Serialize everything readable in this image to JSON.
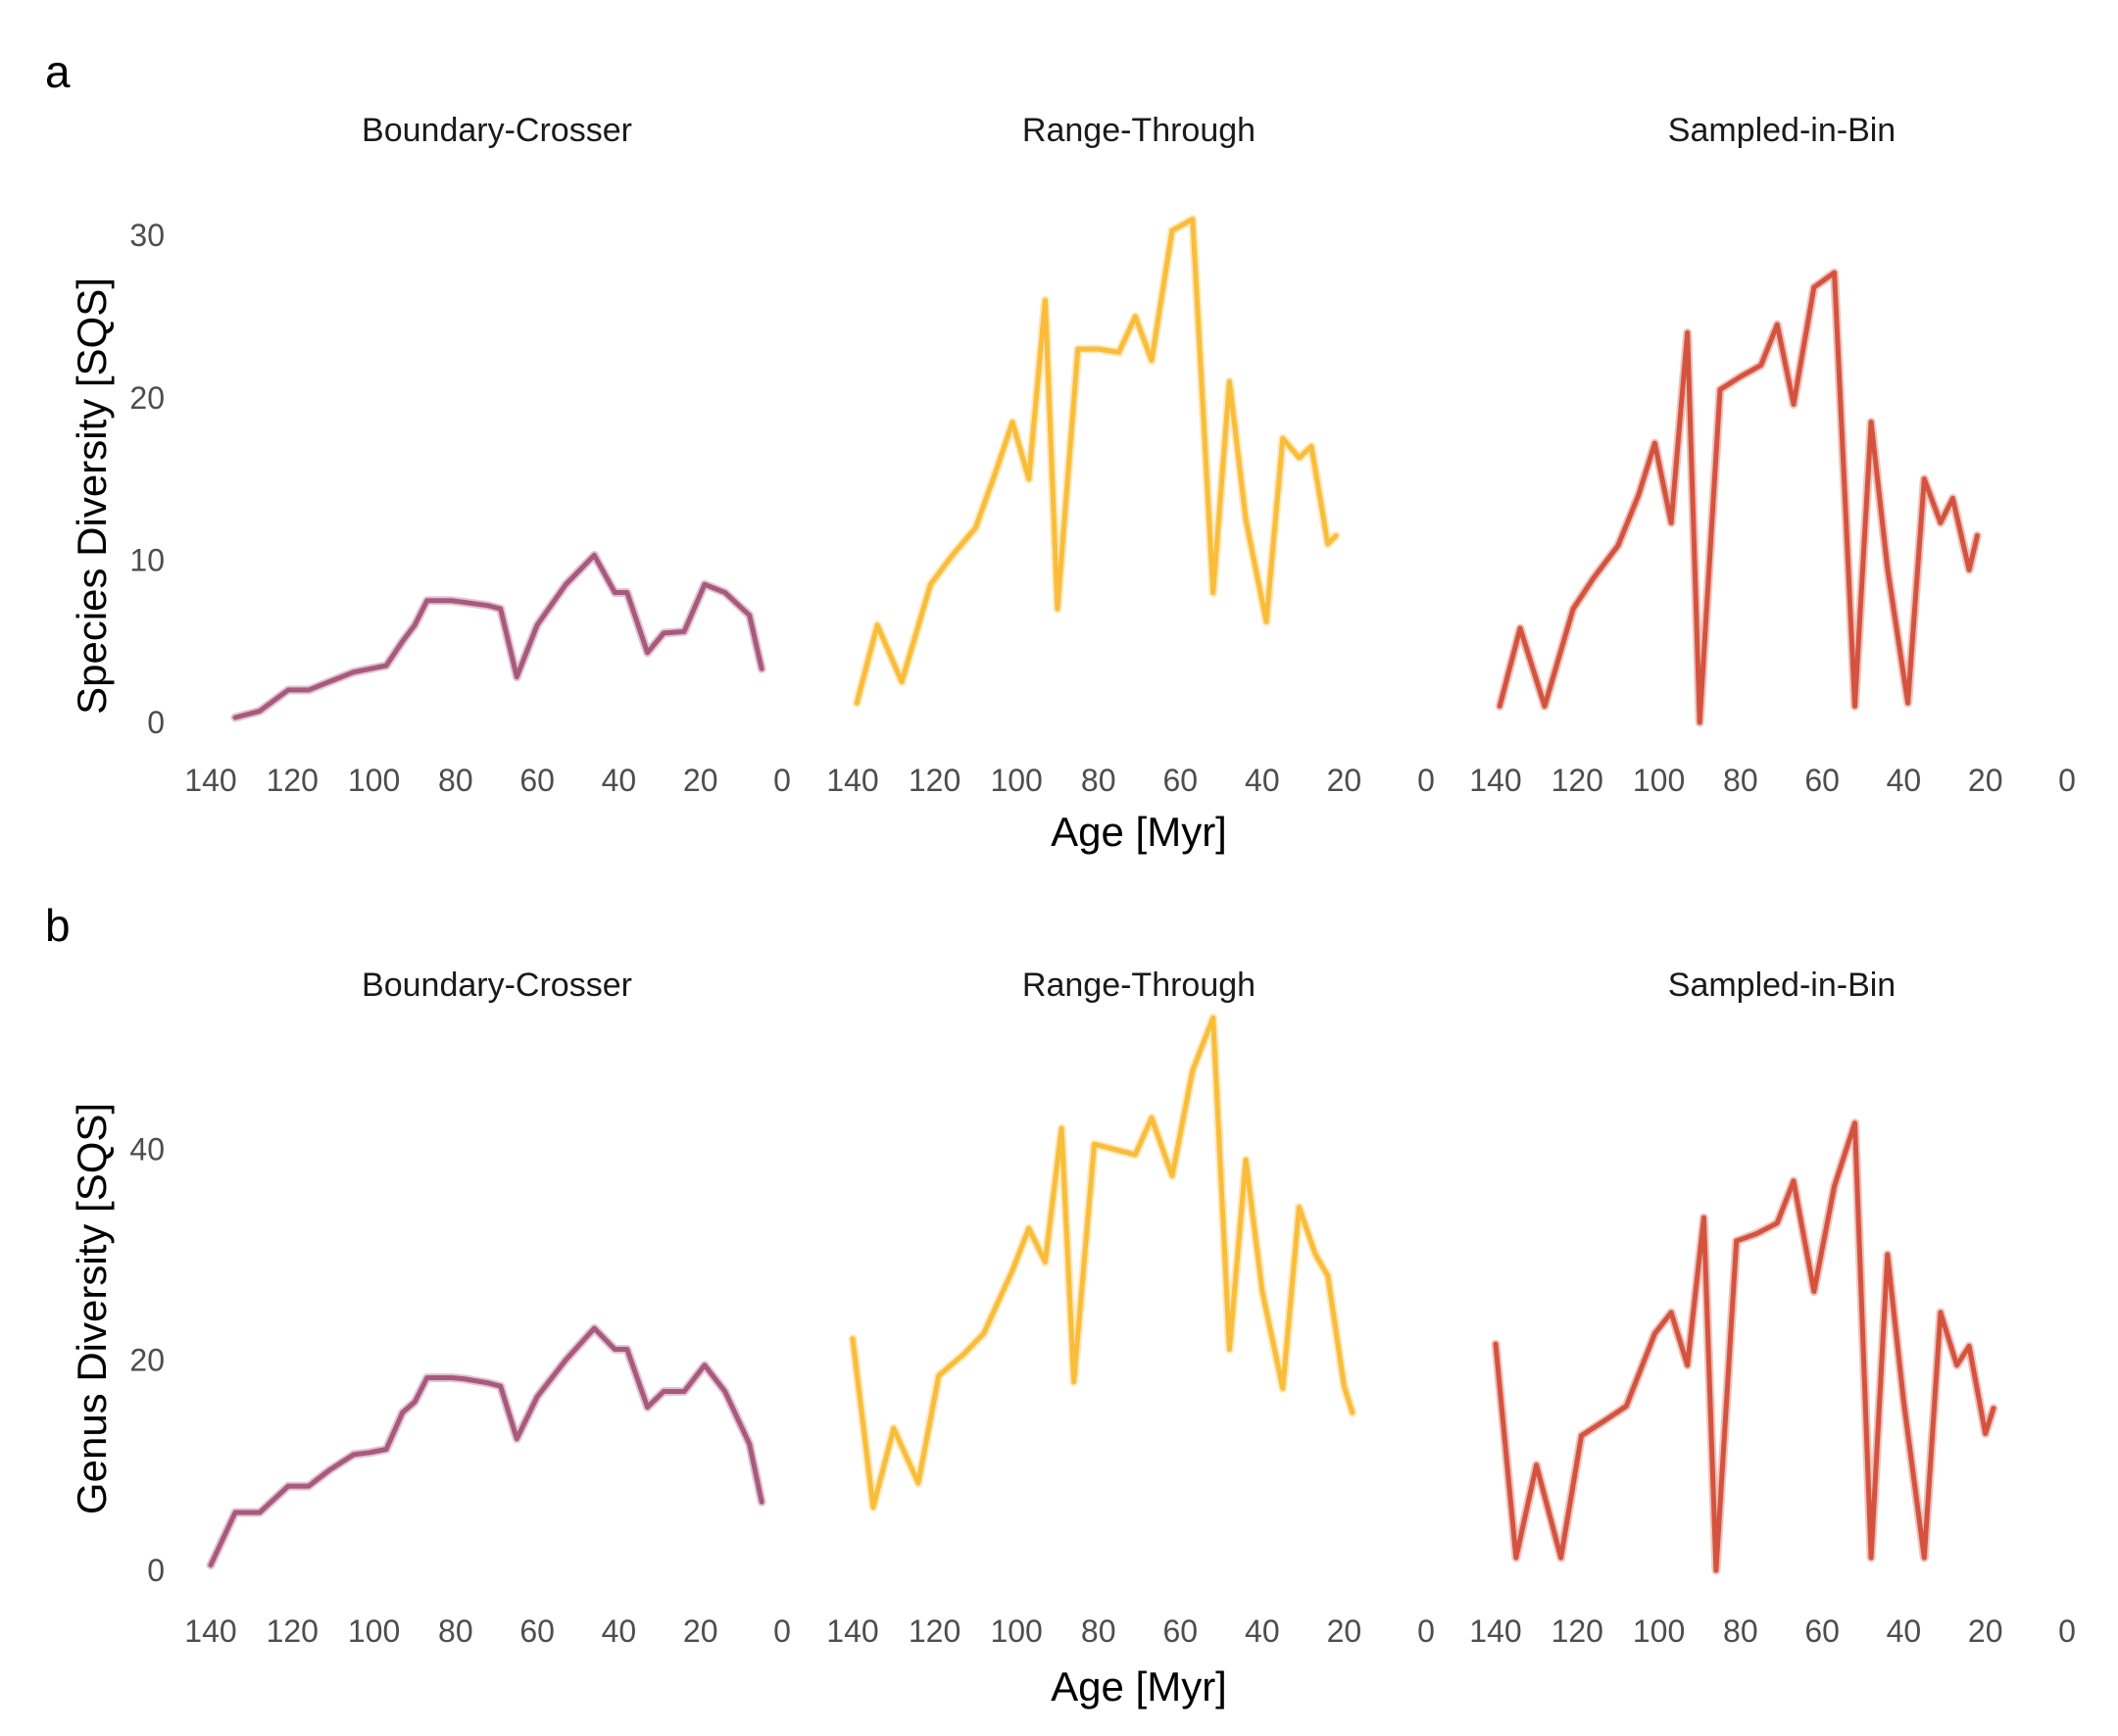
{
  "colors": {
    "Boundary-Crosser": "#a8597e",
    "Range-Through": "#f9bd3a",
    "Sampled-in-Bin": "#d4533f"
  },
  "x_ticks": [
    140,
    120,
    100,
    80,
    60,
    40,
    20,
    0
  ],
  "chart_data": [
    {
      "type": "line",
      "panel": "a",
      "ylabel": "Species Diversity  [SQS]",
      "xlabel": "Age [Myr]",
      "xlim": [
        140,
        0
      ],
      "ylim": [
        0,
        32
      ],
      "y_ticks": [
        0,
        10,
        20,
        30
      ],
      "x_ticks": [
        140,
        120,
        100,
        80,
        60,
        40,
        20,
        0
      ],
      "grid": false,
      "facets": [
        "Boundary-Crosser",
        "Range-Through",
        "Sampled-in-Bin"
      ],
      "series": [
        {
          "name": "Boundary-Crosser",
          "points": [
            [
              134,
              0.3
            ],
            [
              128,
              0.7
            ],
            [
              121,
              2
            ],
            [
              116,
              2
            ],
            [
              111,
              2.5
            ],
            [
              105,
              3.1
            ],
            [
              101,
              3.3
            ],
            [
              97,
              3.5
            ],
            [
              93,
              5
            ],
            [
              90,
              6
            ],
            [
              87,
              7.5
            ],
            [
              81,
              7.5
            ],
            [
              78,
              7.4
            ],
            [
              72,
              7.2
            ],
            [
              69,
              7
            ],
            [
              65,
              2.8
            ],
            [
              60,
              6
            ],
            [
              53,
              8.5
            ],
            [
              46,
              10.3
            ],
            [
              41,
              8
            ],
            [
              38,
              8
            ],
            [
              33,
              4.3
            ],
            [
              29,
              5.5
            ],
            [
              24,
              5.6
            ],
            [
              19,
              8.5
            ],
            [
              14,
              8
            ],
            [
              8,
              6.6
            ],
            [
              5,
              3.3
            ]
          ]
        },
        {
          "name": "Range-Through",
          "points": [
            [
              139,
              1.2
            ],
            [
              134,
              6
            ],
            [
              128,
              2.5
            ],
            [
              121,
              8.5
            ],
            [
              116,
              10.2
            ],
            [
              110,
              12
            ],
            [
              105,
              15.5
            ],
            [
              101,
              18.5
            ],
            [
              97,
              15
            ],
            [
              93,
              26
            ],
            [
              90,
              7
            ],
            [
              85,
              23
            ],
            [
              80,
              23
            ],
            [
              75,
              22.8
            ],
            [
              71,
              25
            ],
            [
              67,
              22.3
            ],
            [
              62,
              30.3
            ],
            [
              57,
              31
            ],
            [
              52,
              8
            ],
            [
              48,
              21
            ],
            [
              44,
              12.5
            ],
            [
              39,
              6.2
            ],
            [
              35,
              17.5
            ],
            [
              31,
              16.3
            ],
            [
              28,
              17
            ],
            [
              24,
              11
            ],
            [
              22,
              11.5
            ]
          ]
        },
        {
          "name": "Sampled-in-Bin",
          "points": [
            [
              139,
              1
            ],
            [
              134,
              5.8
            ],
            [
              128,
              1
            ],
            [
              121,
              7
            ],
            [
              116,
              8.9
            ],
            [
              110,
              10.9
            ],
            [
              105,
              14
            ],
            [
              101,
              17.2
            ],
            [
              97,
              12.3
            ],
            [
              93,
              24
            ],
            [
              90,
              0
            ],
            [
              85,
              20.5
            ],
            [
              80,
              21.3
            ],
            [
              75,
              22
            ],
            [
              71,
              24.5
            ],
            [
              67,
              19.6
            ],
            [
              62,
              26.8
            ],
            [
              57,
              27.7
            ],
            [
              52,
              1
            ],
            [
              48,
              18.5
            ],
            [
              44,
              9.5
            ],
            [
              39,
              1.2
            ],
            [
              35,
              15
            ],
            [
              31,
              12.3
            ],
            [
              28,
              13.8
            ],
            [
              24,
              9.4
            ],
            [
              22,
              11.5
            ]
          ]
        }
      ]
    },
    {
      "type": "line",
      "panel": "b",
      "ylabel": "Genus Diversity  [SQS]",
      "xlabel": "Age [Myr]",
      "xlim": [
        140,
        0
      ],
      "ylim": [
        0,
        53
      ],
      "y_ticks": [
        0,
        20,
        40
      ],
      "x_ticks": [
        140,
        120,
        100,
        80,
        60,
        40,
        20,
        0
      ],
      "grid": false,
      "facets": [
        "Boundary-Crosser",
        "Range-Through",
        "Sampled-in-Bin"
      ],
      "series": [
        {
          "name": "Boundary-Crosser",
          "points": [
            [
              140,
              0.5
            ],
            [
              134,
              5.5
            ],
            [
              128,
              5.5
            ],
            [
              121,
              8
            ],
            [
              116,
              8
            ],
            [
              111,
              9.5
            ],
            [
              105,
              11
            ],
            [
              101,
              11.2
            ],
            [
              97,
              11.5
            ],
            [
              93,
              15
            ],
            [
              90,
              16
            ],
            [
              87,
              18.3
            ],
            [
              81,
              18.3
            ],
            [
              78,
              18.2
            ],
            [
              72,
              17.8
            ],
            [
              69,
              17.5
            ],
            [
              65,
              12.5
            ],
            [
              60,
              16.5
            ],
            [
              53,
              20
            ],
            [
              46,
              23
            ],
            [
              41,
              21
            ],
            [
              38,
              21
            ],
            [
              33,
              15.5
            ],
            [
              29,
              17
            ],
            [
              24,
              17
            ],
            [
              19,
              19.5
            ],
            [
              14,
              17
            ],
            [
              8,
              12
            ],
            [
              5,
              6.5
            ]
          ]
        },
        {
          "name": "Range-Through",
          "points": [
            [
              140,
              22
            ],
            [
              135,
              6
            ],
            [
              130,
              13.5
            ],
            [
              124,
              8.3
            ],
            [
              119,
              18.5
            ],
            [
              113,
              20.5
            ],
            [
              108,
              22.5
            ],
            [
              101,
              28.5
            ],
            [
              97,
              32.5
            ],
            [
              93,
              29.3
            ],
            [
              89,
              42
            ],
            [
              86,
              17.9
            ],
            [
              81,
              40.5
            ],
            [
              76,
              40
            ],
            [
              71,
              39.5
            ],
            [
              67,
              43
            ],
            [
              62,
              37.5
            ],
            [
              57,
              47.5
            ],
            [
              52,
              52.5
            ],
            [
              48,
              21
            ],
            [
              44,
              39
            ],
            [
              40,
              26.5
            ],
            [
              35,
              17.3
            ],
            [
              31,
              34.5
            ],
            [
              27,
              30
            ],
            [
              24,
              28
            ],
            [
              20,
              17.5
            ],
            [
              18,
              15
            ]
          ]
        },
        {
          "name": "Sampled-in-Bin",
          "points": [
            [
              140,
              21.5
            ],
            [
              135,
              1.2
            ],
            [
              130,
              10
            ],
            [
              124,
              1.2
            ],
            [
              119,
              12.8
            ],
            [
              113,
              14.3
            ],
            [
              108,
              15.6
            ],
            [
              101,
              22.5
            ],
            [
              97,
              24.5
            ],
            [
              93,
              19.5
            ],
            [
              89,
              33.5
            ],
            [
              86,
              0
            ],
            [
              81,
              31.3
            ],
            [
              76,
              32
            ],
            [
              71,
              33
            ],
            [
              67,
              37
            ],
            [
              62,
              26.5
            ],
            [
              57,
              36.5
            ],
            [
              52,
              42.5
            ],
            [
              48,
              1.2
            ],
            [
              44,
              30
            ],
            [
              40,
              16
            ],
            [
              35,
              1.2
            ],
            [
              31,
              24.5
            ],
            [
              27,
              19.5
            ],
            [
              24,
              21.3
            ],
            [
              20,
              13
            ],
            [
              18,
              15.4
            ]
          ]
        }
      ]
    }
  ]
}
